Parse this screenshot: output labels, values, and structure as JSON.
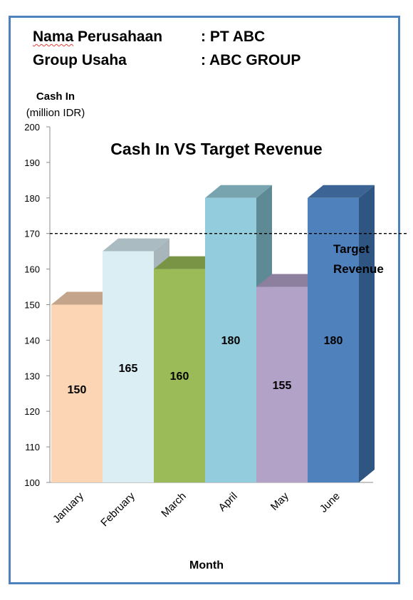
{
  "header": {
    "company_label": "Nama Perusahaan",
    "company_value": ": PT ABC",
    "group_label": "Group Usaha",
    "group_value": ": ABC GROUP"
  },
  "chart_data": {
    "type": "bar",
    "title": "Cash In VS Target Revenue",
    "ylabel_line1": "Cash In",
    "ylabel_line2": "(million IDR)",
    "xlabel": "Month",
    "categories": [
      "January",
      "February",
      "March",
      "April",
      "May",
      "June"
    ],
    "values": [
      150,
      165,
      160,
      180,
      155,
      180
    ],
    "data_labels": [
      "150",
      "165",
      "160",
      "180",
      "155",
      "180"
    ],
    "ylim": [
      100,
      200
    ],
    "yticks": [
      100,
      110,
      120,
      130,
      140,
      150,
      160,
      170,
      180,
      190,
      200
    ],
    "target": {
      "value": 170,
      "label_line1": "Target",
      "label_line2": "Revenue"
    },
    "colors": {
      "front": [
        "#fcd5b5",
        "#dbeef4",
        "#9bbb59",
        "#93cddd",
        "#b3a2c7",
        "#4f81bd"
      ],
      "top": [
        "#c4a48a",
        "#aabcc2",
        "#7a9446",
        "#78a4b0",
        "#8d7f9e",
        "#3c6494"
      ],
      "side": [
        "#c9a78e",
        "#a8b6bb",
        "#799340",
        "#5e8a95",
        "#86789a",
        "#2f5683"
      ]
    }
  }
}
